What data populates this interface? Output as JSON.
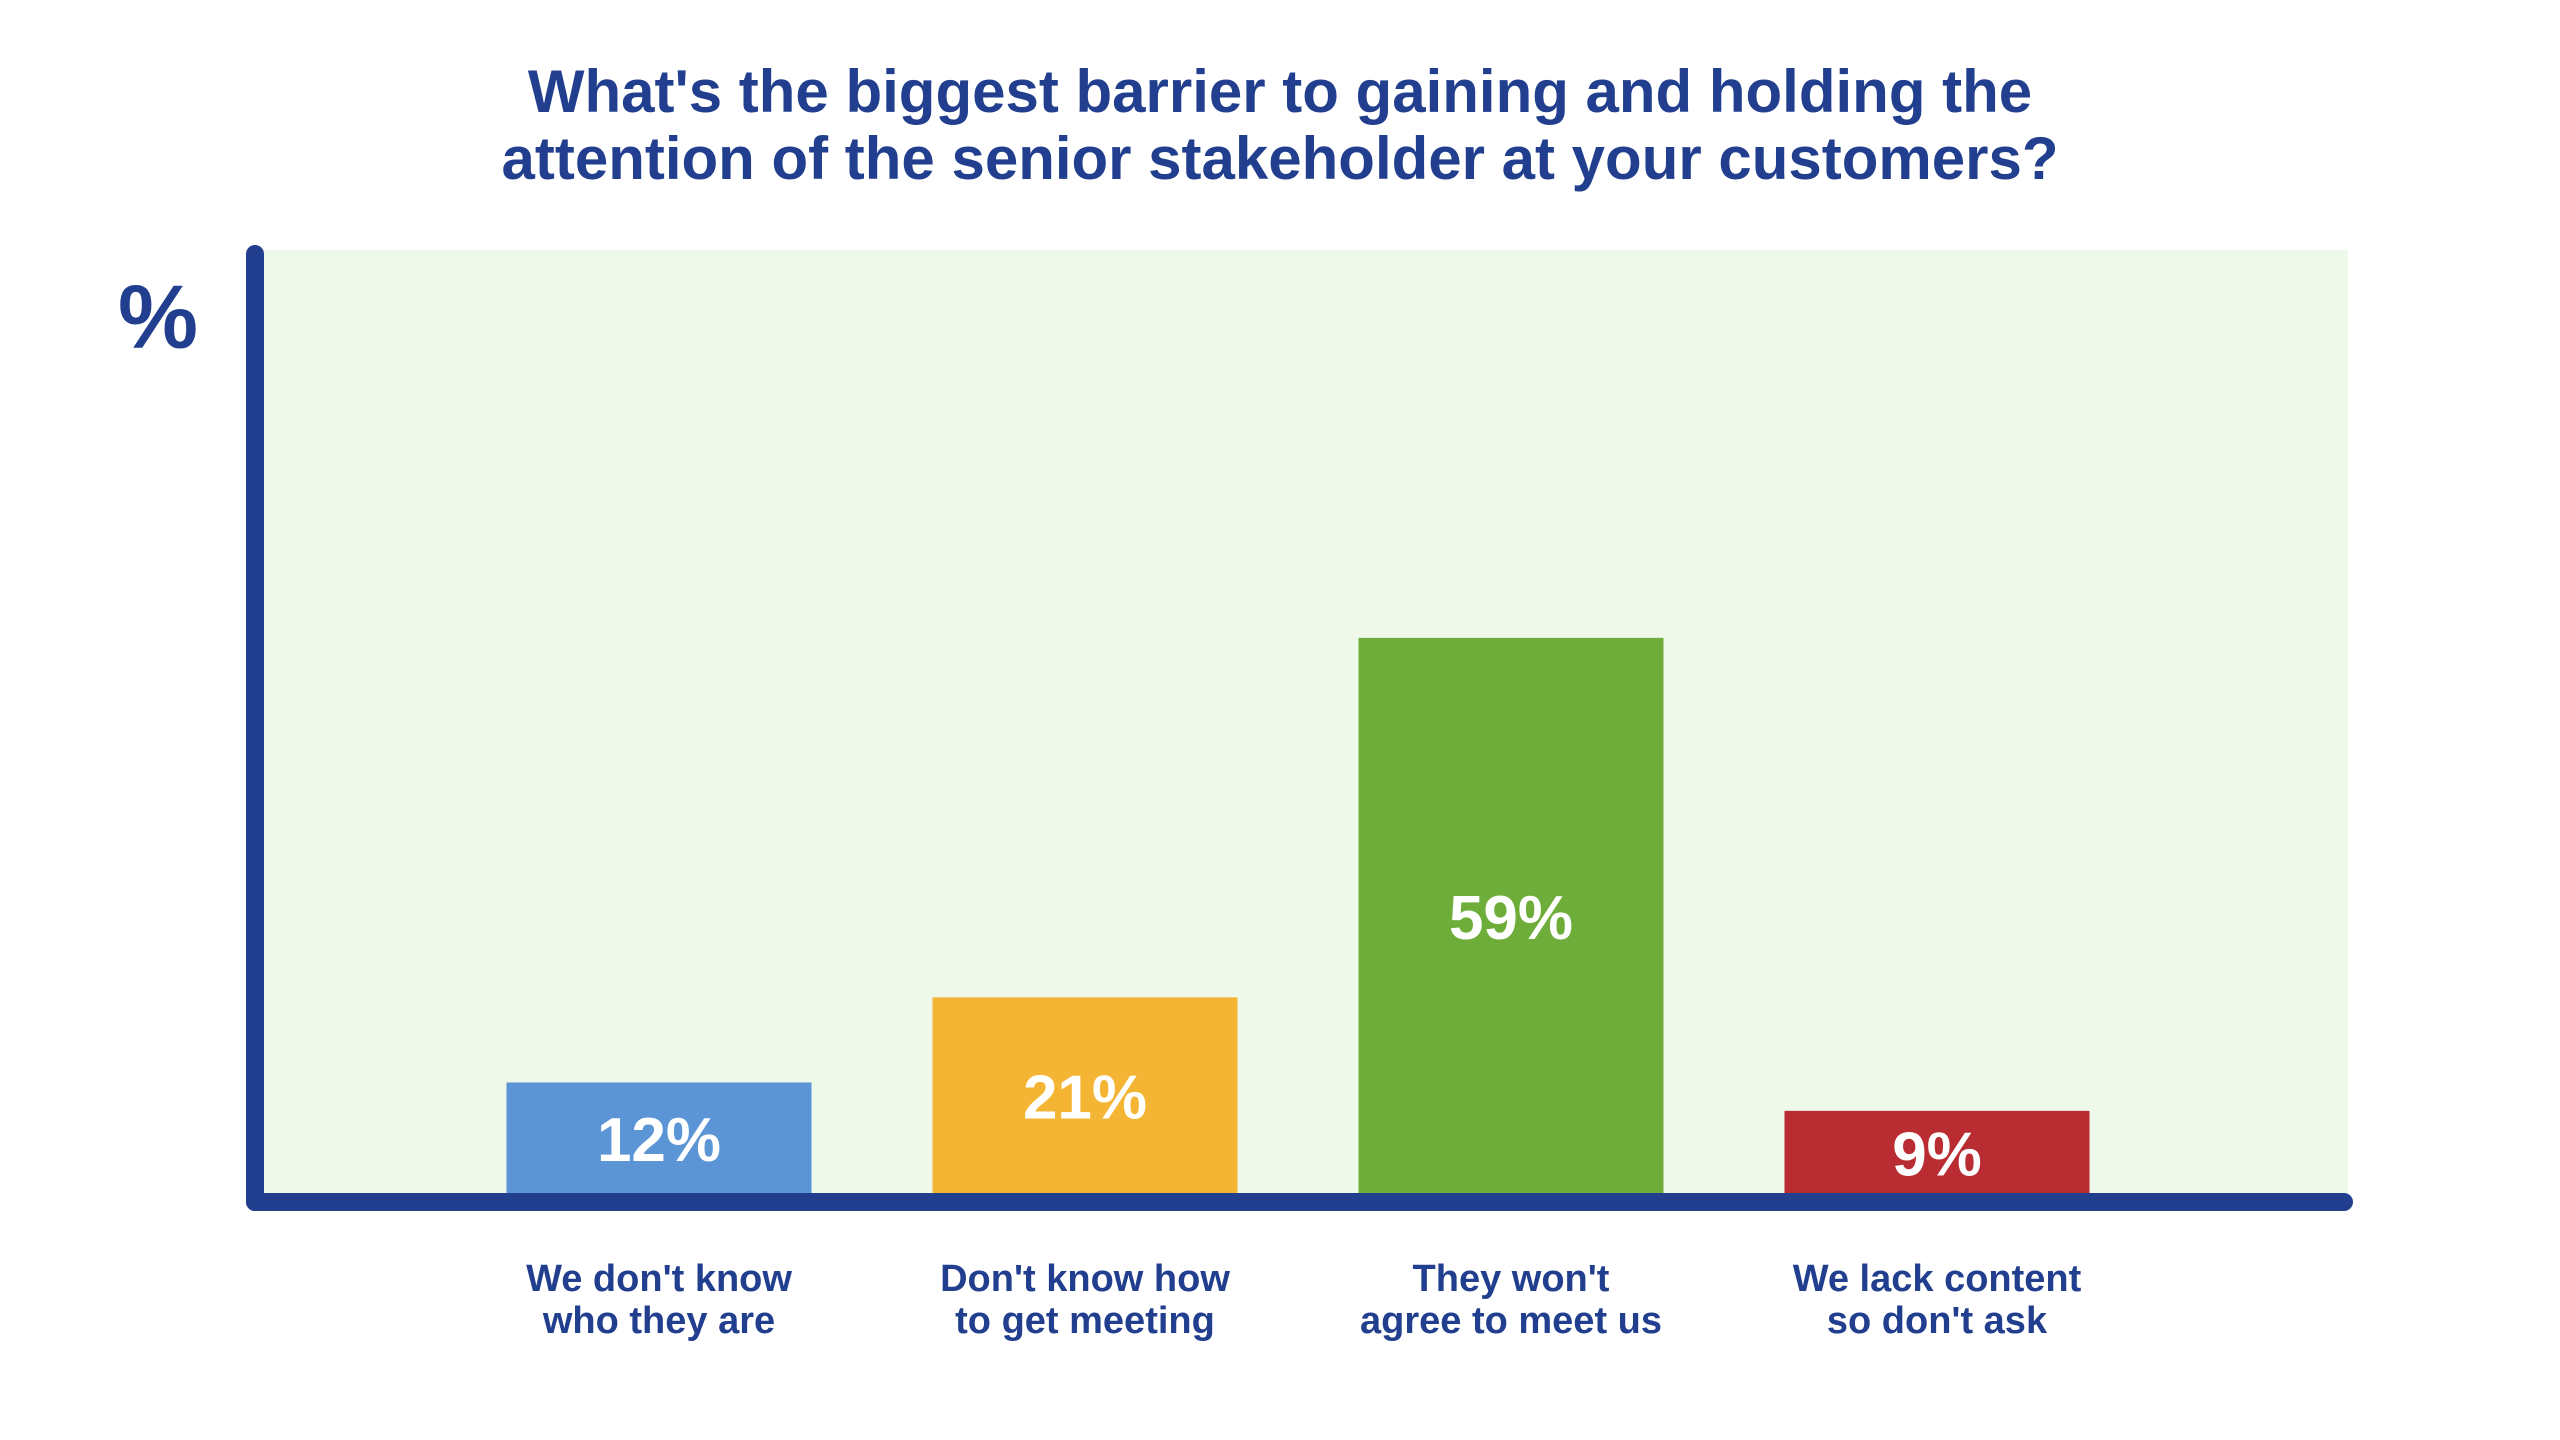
{
  "title": {
    "line1": "What's the biggest barrier to gaining and holding the",
    "line2": "attention of the senior stakeholder at your customers?"
  },
  "colors": {
    "axis": "#213f8e",
    "plot_background": "#eef9ea",
    "text": "#213f8e",
    "bar_label": "#ffffff"
  },
  "chart_data": {
    "type": "bar",
    "title": "What's the biggest barrier to gaining and holding the attention of the senior stakeholder at your customers?",
    "ylabel": "%",
    "xlabel": "",
    "ylim": [
      0,
      100
    ],
    "grid": false,
    "categories": [
      {
        "lines": [
          "We don't know",
          "who they are"
        ]
      },
      {
        "lines": [
          "Don't know how",
          "to get meeting"
        ]
      },
      {
        "lines": [
          "They won't",
          "agree to meet us"
        ]
      },
      {
        "lines": [
          "We lack content",
          "so don't ask"
        ]
      }
    ],
    "values": [
      12,
      21,
      59,
      9
    ],
    "data_labels": [
      "12%",
      "21%",
      "59%",
      "9%"
    ],
    "bar_colors": [
      "#5b95d6",
      "#f5b534",
      "#6fad3b",
      "#b82c32"
    ]
  }
}
